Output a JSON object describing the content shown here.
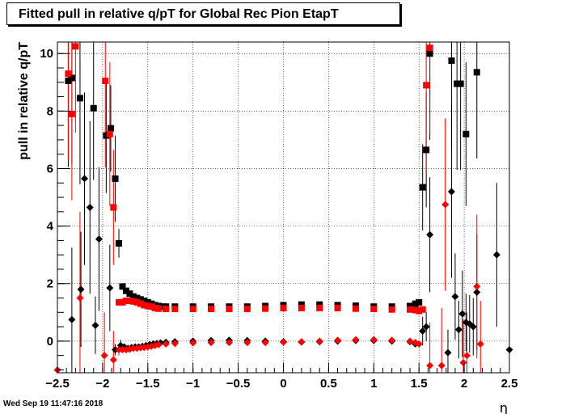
{
  "chart_data": {
    "type": "scatter",
    "title": "Fitted pull in relative q/pT for Global Rec Pion EtapT",
    "xlabel": "η",
    "ylabel": "pull in relative q/pT",
    "xlim": [
      -2.5,
      2.5
    ],
    "ylim": [
      -1.1,
      10.4
    ],
    "grid": true,
    "xticks": [
      -2.5,
      -2,
      -1.5,
      -1,
      -0.5,
      0,
      0.5,
      1,
      1.5,
      2,
      2.5
    ],
    "xtick_labels": [
      "−2.5",
      "−2",
      "−1.5",
      "−1",
      "−0.5",
      "0",
      "0.5",
      "1",
      "1.5",
      "2",
      "2.5"
    ],
    "yticks": [
      0,
      2,
      4,
      6,
      8,
      10
    ],
    "ytick_labels": [
      "0",
      "2",
      "4",
      "6",
      "8",
      "10"
    ],
    "series": [
      {
        "marker": "square",
        "color": "#000000",
        "points": [
          [
            -2.38,
            9.05,
            3.0
          ],
          [
            -2.34,
            9.15,
            3.0
          ],
          [
            -2.25,
            8.45,
            3.0
          ],
          [
            -2.1,
            8.1,
            2.5
          ],
          [
            -1.96,
            7.15,
            2.0
          ],
          [
            -1.91,
            7.4,
            1.5
          ],
          [
            -1.86,
            5.65,
            1.5
          ],
          [
            -1.82,
            3.4,
            0.5
          ],
          [
            -1.78,
            1.9,
            0.1
          ],
          [
            -1.74,
            1.75,
            0.1
          ],
          [
            -1.7,
            1.65,
            0.1
          ],
          [
            -1.66,
            1.55,
            0.1
          ],
          [
            -1.62,
            1.5,
            0.1
          ],
          [
            -1.58,
            1.45,
            0.1
          ],
          [
            -1.54,
            1.4,
            0.1
          ],
          [
            -1.5,
            1.35,
            0.05
          ],
          [
            -1.46,
            1.3,
            0.05
          ],
          [
            -1.42,
            1.25,
            0.05
          ],
          [
            -1.38,
            1.22,
            0.05
          ],
          [
            -1.34,
            1.2,
            0.05
          ],
          [
            -1.3,
            1.2,
            0.05
          ],
          [
            -1.2,
            1.2,
            0.05
          ],
          [
            -1.0,
            1.2,
            0.05
          ],
          [
            -0.8,
            1.2,
            0.05
          ],
          [
            -0.6,
            1.2,
            0.05
          ],
          [
            -0.4,
            1.2,
            0.05
          ],
          [
            -0.2,
            1.22,
            0.05
          ],
          [
            0.0,
            1.25,
            0.05
          ],
          [
            0.2,
            1.27,
            0.05
          ],
          [
            0.4,
            1.27,
            0.05
          ],
          [
            0.6,
            1.25,
            0.05
          ],
          [
            0.8,
            1.23,
            0.05
          ],
          [
            1.0,
            1.2,
            0.05
          ],
          [
            1.2,
            1.2,
            0.05
          ],
          [
            1.4,
            1.22,
            0.05
          ],
          [
            1.46,
            1.3,
            0.1
          ],
          [
            1.5,
            1.35,
            0.1
          ],
          [
            1.54,
            5.35,
            1.5
          ],
          [
            1.58,
            6.65,
            2.0
          ],
          [
            1.62,
            10.0,
            3.0
          ],
          [
            1.86,
            9.75,
            3.0
          ],
          [
            1.92,
            8.95,
            3.0
          ],
          [
            1.96,
            8.95,
            3.0
          ],
          [
            2.02,
            7.2,
            2.5
          ],
          [
            2.14,
            9.35,
            3.0
          ]
        ]
      },
      {
        "marker": "square",
        "color": "#ff0000",
        "points": [
          [
            -2.38,
            9.3,
            3.0
          ],
          [
            -2.34,
            7.9,
            3.0
          ],
          [
            -2.3,
            10.25,
            3.0
          ],
          [
            -1.97,
            9.05,
            3.0
          ],
          [
            -1.92,
            7.2,
            2.5
          ],
          [
            -1.88,
            4.65,
            2.0
          ],
          [
            -1.82,
            1.35,
            0.1
          ],
          [
            -1.78,
            1.35,
            0.1
          ],
          [
            -1.74,
            1.4,
            0.05
          ],
          [
            -1.7,
            1.4,
            0.05
          ],
          [
            -1.66,
            1.38,
            0.05
          ],
          [
            -1.62,
            1.35,
            0.05
          ],
          [
            -1.58,
            1.3,
            0.05
          ],
          [
            -1.54,
            1.25,
            0.05
          ],
          [
            -1.5,
            1.22,
            0.05
          ],
          [
            -1.46,
            1.2,
            0.05
          ],
          [
            -1.42,
            1.15,
            0.05
          ],
          [
            -1.38,
            1.13,
            0.05
          ],
          [
            -1.3,
            1.12,
            0.05
          ],
          [
            -1.2,
            1.12,
            0.05
          ],
          [
            -1.0,
            1.12,
            0.05
          ],
          [
            -0.8,
            1.12,
            0.05
          ],
          [
            -0.6,
            1.12,
            0.05
          ],
          [
            -0.4,
            1.12,
            0.05
          ],
          [
            -0.2,
            1.13,
            0.05
          ],
          [
            0.0,
            1.15,
            0.05
          ],
          [
            0.2,
            1.15,
            0.05
          ],
          [
            0.4,
            1.15,
            0.05
          ],
          [
            0.6,
            1.15,
            0.05
          ],
          [
            0.8,
            1.13,
            0.05
          ],
          [
            1.0,
            1.12,
            0.05
          ],
          [
            1.2,
            1.1,
            0.05
          ],
          [
            1.4,
            1.1,
            0.05
          ],
          [
            1.46,
            1.08,
            0.05
          ],
          [
            1.5,
            1.05,
            0.05
          ],
          [
            1.54,
            1.1,
            0.1
          ],
          [
            1.58,
            8.9,
            3.0
          ],
          [
            1.62,
            10.2,
            3.0
          ]
        ]
      },
      {
        "marker": "diamond",
        "color": "#000000",
        "points": [
          [
            -2.34,
            0.75,
            2.5
          ],
          [
            -2.24,
            1.8,
            2.0
          ],
          [
            -2.2,
            5.65,
            3.0
          ],
          [
            -2.14,
            4.65,
            3.0
          ],
          [
            -2.08,
            0.55,
            1.0
          ],
          [
            -2.04,
            3.55,
            2.5
          ],
          [
            -1.92,
            1.85,
            1.5
          ],
          [
            -1.86,
            -0.3,
            0.2
          ],
          [
            -1.8,
            -0.15,
            0.2
          ],
          [
            -1.76,
            -0.2,
            0.1
          ],
          [
            -1.72,
            -0.25,
            0.1
          ],
          [
            -1.68,
            -0.22,
            0.1
          ],
          [
            -1.64,
            -0.2,
            0.1
          ],
          [
            -1.6,
            -0.2,
            0.05
          ],
          [
            -1.56,
            -0.18,
            0.05
          ],
          [
            -1.52,
            -0.15,
            0.05
          ],
          [
            -1.48,
            -0.12,
            0.05
          ],
          [
            -1.44,
            -0.1,
            0.05
          ],
          [
            -1.4,
            -0.08,
            0.05
          ],
          [
            -1.36,
            -0.06,
            0.05
          ],
          [
            -1.3,
            -0.04,
            0.05
          ],
          [
            -1.2,
            -0.02,
            0.05
          ],
          [
            -1.0,
            0.0,
            0.05
          ],
          [
            -0.8,
            0.02,
            0.05
          ],
          [
            -0.6,
            0.03,
            0.05
          ],
          [
            -0.4,
            0.02,
            0.05
          ],
          [
            -0.2,
            0.0,
            0.05
          ],
          [
            0.0,
            -0.02,
            0.05
          ],
          [
            0.2,
            -0.03,
            0.05
          ],
          [
            0.4,
            -0.02,
            0.05
          ],
          [
            0.6,
            0.0,
            0.05
          ],
          [
            0.8,
            0.02,
            0.05
          ],
          [
            1.0,
            0.02,
            0.05
          ],
          [
            1.2,
            0.0,
            0.05
          ],
          [
            1.4,
            -0.02,
            0.05
          ],
          [
            1.46,
            -0.1,
            0.1
          ],
          [
            1.54,
            0.35,
            0.5
          ],
          [
            1.58,
            0.5,
            0.5
          ],
          [
            1.62,
            3.7,
            2.0
          ],
          [
            1.82,
            -0.4,
            0.8
          ],
          [
            1.86,
            5.2,
            3.0
          ],
          [
            1.9,
            1.55,
            1.5
          ],
          [
            1.94,
            0.4,
            1.0
          ],
          [
            1.98,
            0.95,
            1.5
          ],
          [
            2.02,
            0.65,
            1.0
          ],
          [
            2.06,
            0.6,
            1.0
          ],
          [
            2.1,
            0.5,
            1.0
          ],
          [
            2.14,
            1.7,
            2.0
          ],
          [
            2.36,
            3.0,
            2.5
          ],
          [
            2.5,
            -0.3,
            2.5
          ]
        ]
      },
      {
        "marker": "diamond",
        "color": "#ff0000",
        "points": [
          [
            -2.5,
            -1.0,
            5.0
          ],
          [
            -2.25,
            1.5,
            3.0
          ],
          [
            -1.98,
            -0.5,
            1.5
          ],
          [
            -1.88,
            -0.65,
            1.0
          ],
          [
            -1.82,
            -0.3,
            0.2
          ],
          [
            -1.78,
            -0.3,
            0.1
          ],
          [
            -1.74,
            -0.3,
            0.1
          ],
          [
            -1.7,
            -0.28,
            0.1
          ],
          [
            -1.66,
            -0.25,
            0.05
          ],
          [
            -1.62,
            -0.25,
            0.05
          ],
          [
            -1.58,
            -0.23,
            0.05
          ],
          [
            -1.54,
            -0.22,
            0.05
          ],
          [
            -1.5,
            -0.2,
            0.05
          ],
          [
            -1.46,
            -0.18,
            0.05
          ],
          [
            -1.42,
            -0.15,
            0.05
          ],
          [
            -1.38,
            -0.12,
            0.05
          ],
          [
            -1.3,
            -0.1,
            0.05
          ],
          [
            -1.2,
            -0.08,
            0.05
          ],
          [
            -1.0,
            -0.06,
            0.05
          ],
          [
            -0.8,
            -0.05,
            0.05
          ],
          [
            -0.6,
            -0.05,
            0.05
          ],
          [
            -0.4,
            -0.05,
            0.05
          ],
          [
            -0.2,
            -0.05,
            0.05
          ],
          [
            0.0,
            -0.04,
            0.05
          ],
          [
            0.2,
            -0.02,
            0.05
          ],
          [
            0.4,
            0.0,
            0.05
          ],
          [
            0.6,
            0.03,
            0.05
          ],
          [
            0.8,
            0.05,
            0.05
          ],
          [
            1.0,
            0.05,
            0.05
          ],
          [
            1.2,
            0.03,
            0.05
          ],
          [
            1.4,
            0.0,
            0.05
          ],
          [
            1.46,
            -0.05,
            0.1
          ],
          [
            1.5,
            -0.1,
            0.1
          ],
          [
            1.62,
            -0.85,
            1.5
          ],
          [
            1.75,
            -0.85,
            2.0
          ],
          [
            1.79,
            4.75,
            3.0
          ],
          [
            1.99,
            -0.75,
            1.5
          ],
          [
            2.03,
            -0.5,
            1.5
          ],
          [
            2.14,
            1.9,
            2.5
          ],
          [
            2.18,
            -0.1,
            1.5
          ]
        ]
      }
    ]
  },
  "timestamp": "Wed Sep 19 11:47:16 2018"
}
